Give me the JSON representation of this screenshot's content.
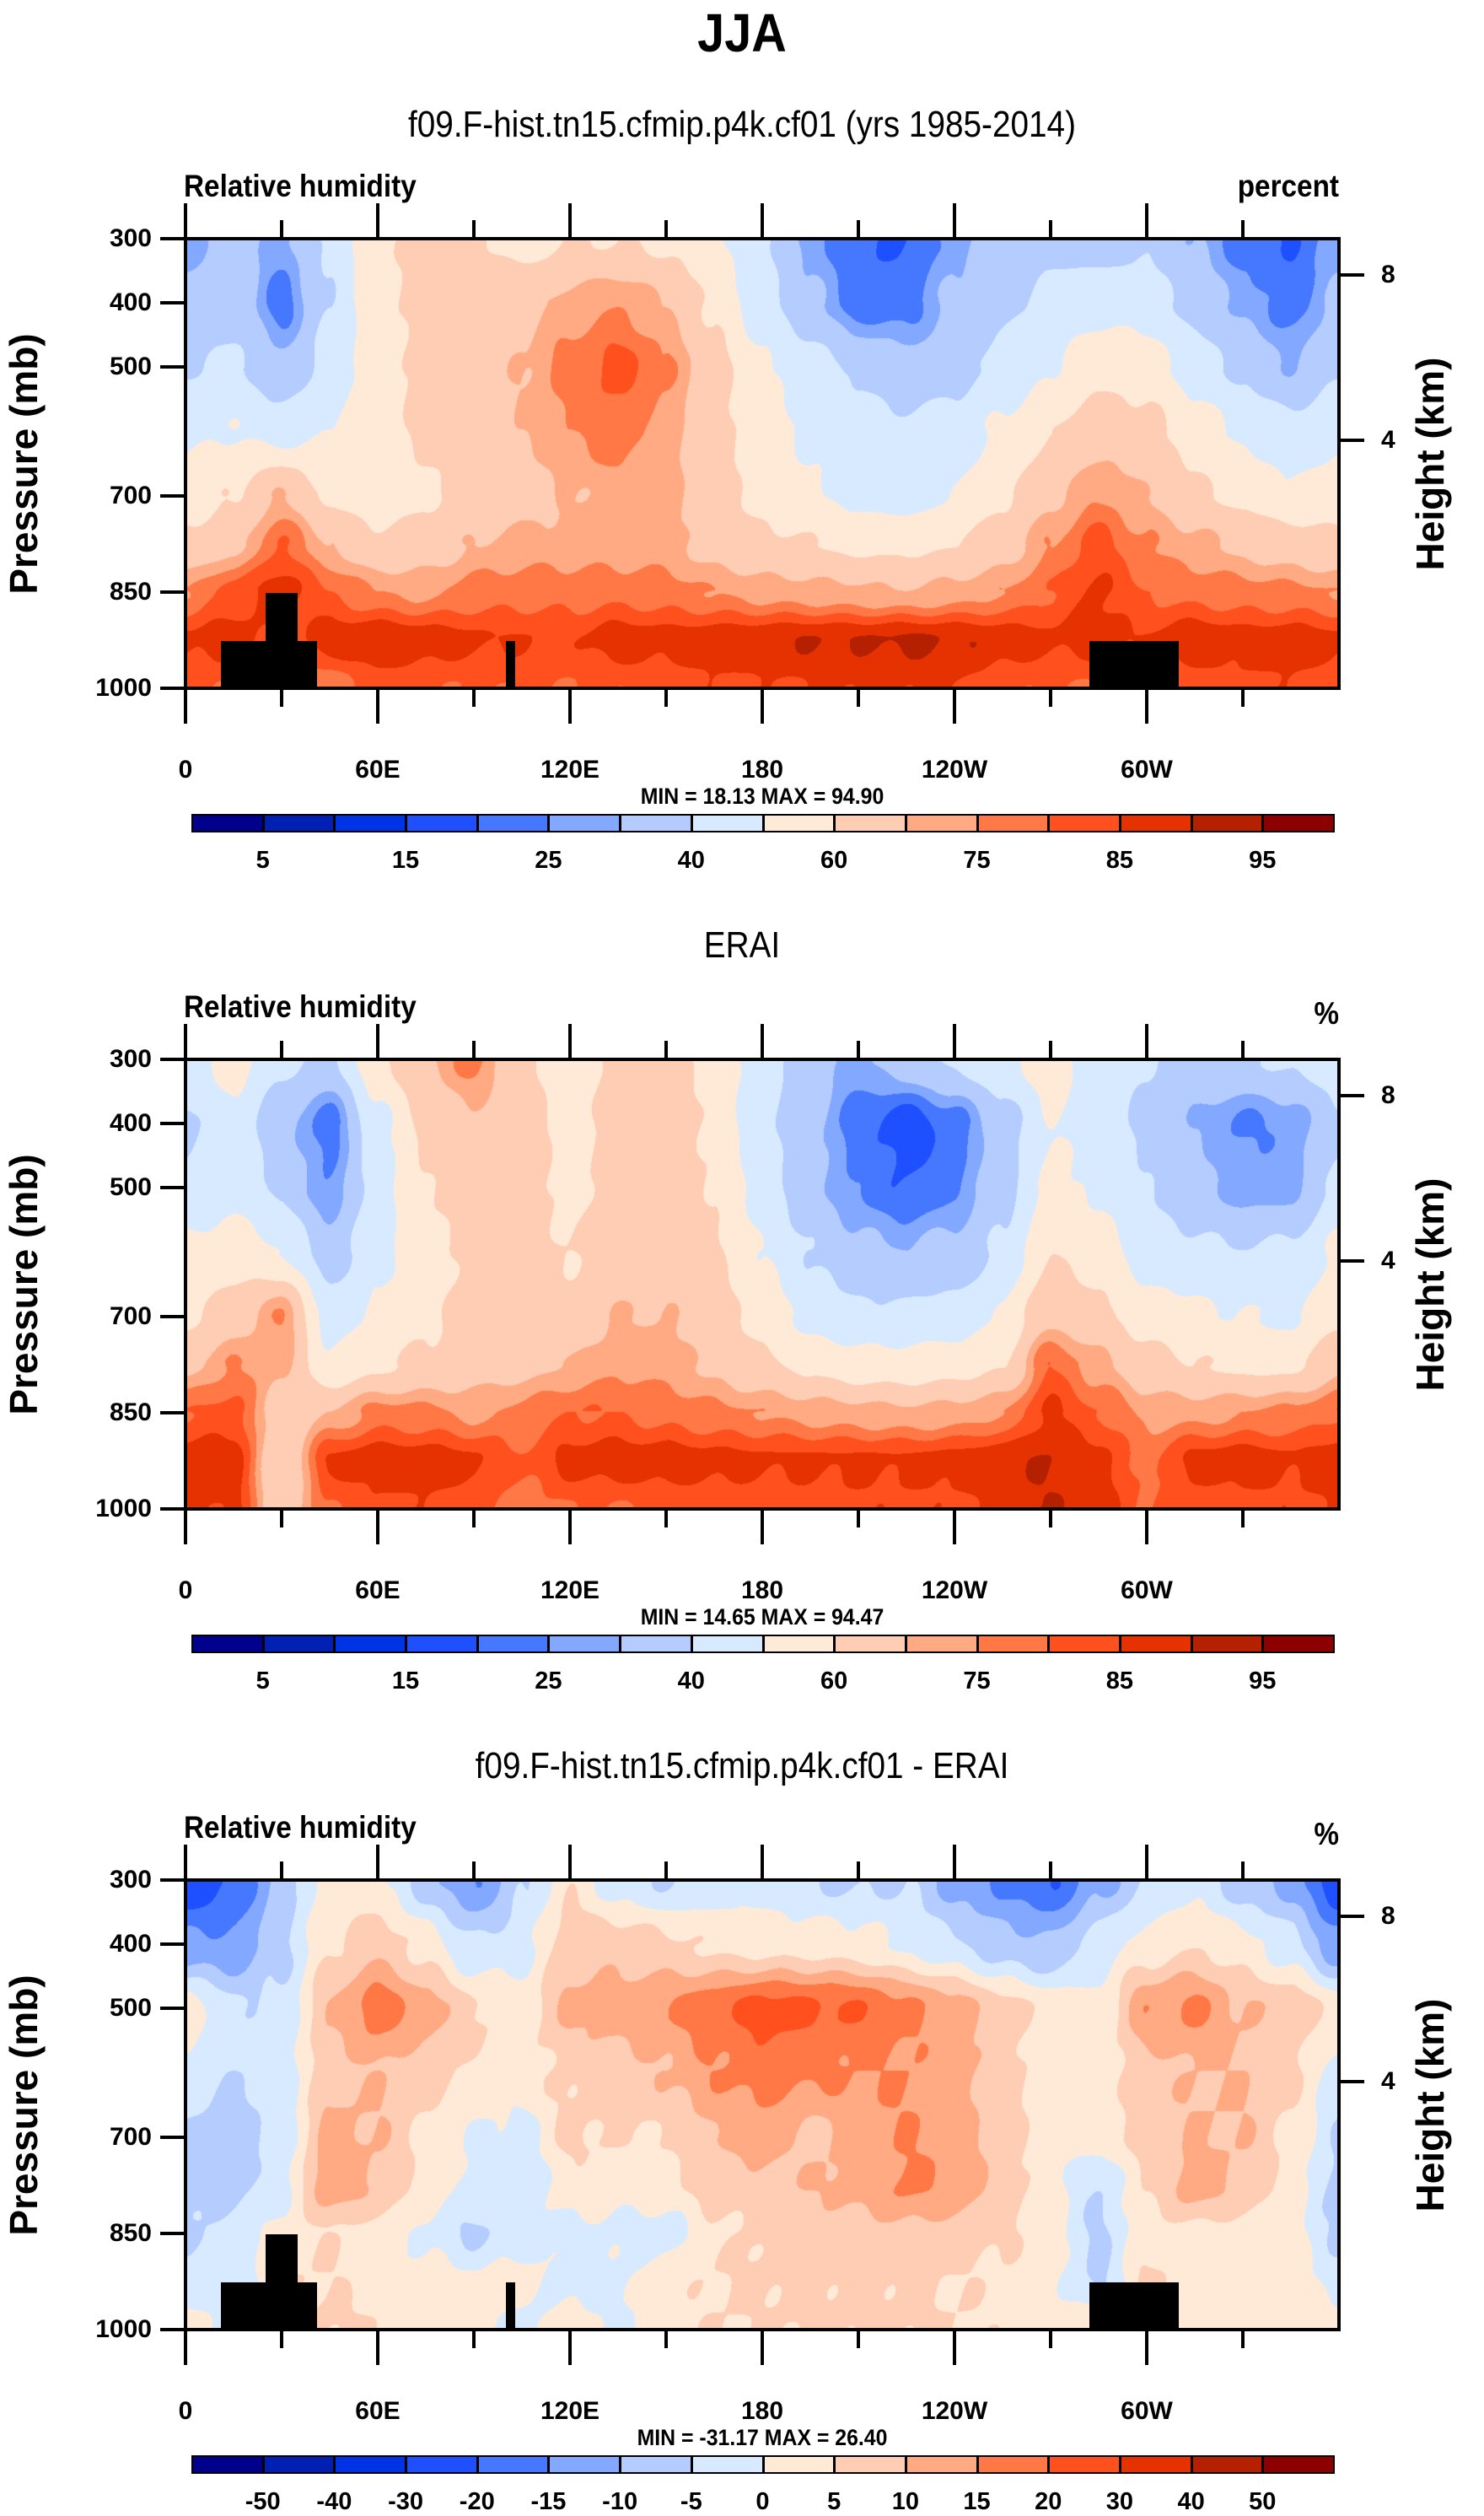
{
  "main_title": "JJA",
  "chart_data": [
    {
      "type": "heatmap",
      "subtype": "filled-contour",
      "title": "f09.F-hist.tn15.cfmip.p4k.cf01 (yrs 1985-2014)",
      "left_string": "Relative humidity",
      "right_string": "percent",
      "xlabel": "",
      "ylabel": "Pressure (mb)",
      "ylabel_right": "Height (km)",
      "x_ticks": [
        "0",
        "60E",
        "120E",
        "180",
        "120W",
        "60W"
      ],
      "x_tick_values": [
        0,
        60,
        120,
        180,
        240,
        300
      ],
      "x_range": [
        0,
        360
      ],
      "y_ticks": [
        "300",
        "400",
        "500",
        "700",
        "850",
        "1000"
      ],
      "y_tick_values": [
        300,
        400,
        500,
        700,
        850,
        1000
      ],
      "y_range": [
        300,
        1000
      ],
      "right_ticks": [
        "8",
        "4"
      ],
      "right_tick_pressures": [
        356,
        614
      ],
      "min_max_text": "MIN = 18.13  MAX = 94.90",
      "colorbar_levels": [
        5,
        10,
        15,
        20,
        25,
        30,
        40,
        50,
        60,
        70,
        75,
        80,
        85,
        90,
        95
      ],
      "colorbar_labels": [
        "5",
        "15",
        "25",
        "40",
        "60",
        "75",
        "85",
        "95"
      ],
      "colorbar_label_every": 2,
      "grid_lon": [
        0,
        15,
        30,
        45,
        60,
        75,
        90,
        105,
        120,
        135,
        150,
        165,
        180,
        195,
        210,
        225,
        240,
        255,
        270,
        285,
        300,
        315,
        330,
        345,
        360
      ],
      "grid_p": [
        300,
        400,
        500,
        600,
        700,
        775,
        850,
        925,
        1000
      ],
      "values": [
        [
          27,
          35,
          28,
          42,
          58,
          62,
          62,
          56,
          60,
          60,
          58,
          52,
          42,
          27,
          20,
          20,
          27,
          35,
          38,
          35,
          38,
          30,
          22,
          20,
          27
        ],
        [
          32,
          37,
          22,
          40,
          58,
          63,
          65,
          68,
          72,
          75,
          70,
          58,
          44,
          32,
          22,
          22,
          32,
          38,
          42,
          47,
          45,
          36,
          28,
          22,
          32
        ],
        [
          40,
          42,
          32,
          44,
          56,
          62,
          65,
          70,
          78,
          82,
          76,
          63,
          52,
          45,
          38,
          33,
          36,
          42,
          50,
          57,
          56,
          46,
          38,
          30,
          40
        ],
        [
          48,
          50,
          47,
          50,
          56,
          62,
          65,
          70,
          75,
          78,
          73,
          63,
          56,
          48,
          45,
          42,
          45,
          52,
          60,
          66,
          63,
          55,
          48,
          44,
          48
        ],
        [
          54,
          60,
          70,
          58,
          55,
          58,
          62,
          66,
          70,
          73,
          72,
          63,
          57,
          52,
          47,
          46,
          50,
          58,
          68,
          75,
          70,
          62,
          58,
          52,
          54
        ],
        [
          62,
          68,
          80,
          70,
          62,
          65,
          70,
          72,
          72,
          72,
          72,
          66,
          62,
          60,
          58,
          58,
          60,
          65,
          75,
          82,
          75,
          72,
          68,
          65,
          62
        ],
        [
          75,
          82,
          88,
          80,
          75,
          74,
          77,
          78,
          78,
          78,
          77,
          75,
          73,
          72,
          71,
          70,
          72,
          75,
          80,
          86,
          80,
          78,
          77,
          76,
          75
        ],
        [
          86,
          88,
          82,
          88,
          90,
          88,
          86,
          85,
          84,
          88,
          87,
          88,
          89,
          90,
          90,
          91,
          90,
          88,
          86,
          87,
          85,
          89,
          87,
          88,
          86
        ],
        [
          82,
          80,
          78,
          76,
          82,
          81,
          80,
          81,
          80,
          81,
          82,
          84,
          84,
          85,
          86,
          86,
          85,
          82,
          80,
          80,
          82,
          82,
          84,
          84,
          82
        ]
      ],
      "topography_masks": [
        {
          "lon": [
            11,
            41
          ],
          "top_p": 926
        },
        {
          "lon": [
            25,
            35
          ],
          "top_p": 852
        },
        {
          "lon": [
            100,
            103
          ],
          "top_p": 926
        },
        {
          "lon": [
            282,
            310
          ],
          "top_p": 926
        }
      ]
    },
    {
      "type": "heatmap",
      "subtype": "filled-contour",
      "title": "ERAI",
      "left_string": "Relative humidity",
      "right_string": "%",
      "xlabel": "",
      "ylabel": "Pressure (mb)",
      "ylabel_right": "Height (km)",
      "x_ticks": [
        "0",
        "60E",
        "120E",
        "180",
        "120W",
        "60W"
      ],
      "x_tick_values": [
        0,
        60,
        120,
        180,
        240,
        300
      ],
      "x_range": [
        0,
        360
      ],
      "y_ticks": [
        "300",
        "400",
        "500",
        "700",
        "850",
        "1000"
      ],
      "y_tick_values": [
        300,
        400,
        500,
        700,
        850,
        1000
      ],
      "y_range": [
        300,
        1000
      ],
      "right_ticks": [
        "8",
        "4"
      ],
      "right_tick_pressures": [
        356,
        614
      ],
      "min_max_text": "MIN = 14.65  MAX = 94.47",
      "colorbar_levels": [
        5,
        10,
        15,
        20,
        25,
        30,
        40,
        50,
        60,
        70,
        75,
        80,
        85,
        90,
        95
      ],
      "colorbar_labels": [
        "5",
        "15",
        "25",
        "40",
        "60",
        "75",
        "85",
        "95"
      ],
      "colorbar_label_every": 2,
      "grid_lon": [
        0,
        15,
        30,
        45,
        60,
        75,
        90,
        105,
        120,
        135,
        150,
        165,
        180,
        195,
        210,
        225,
        240,
        255,
        270,
        285,
        300,
        315,
        330,
        345,
        360
      ],
      "grid_p": [
        300,
        400,
        500,
        600,
        700,
        775,
        850,
        925,
        1000
      ],
      "values": [
        [
          45,
          55,
          42,
          38,
          58,
          70,
          77,
          62,
          55,
          63,
          65,
          55,
          45,
          35,
          28,
          35,
          42,
          48,
          55,
          45,
          40,
          35,
          38,
          42,
          45
        ],
        [
          38,
          47,
          32,
          22,
          47,
          62,
          68,
          66,
          55,
          64,
          67,
          58,
          42,
          32,
          22,
          17,
          22,
          35,
          50,
          46,
          38,
          30,
          24,
          26,
          38
        ],
        [
          42,
          47,
          38,
          25,
          45,
          60,
          64,
          64,
          58,
          64,
          66,
          60,
          45,
          33,
          24,
          20,
          24,
          36,
          52,
          48,
          40,
          33,
          27,
          28,
          42
        ],
        [
          52,
          55,
          50,
          35,
          47,
          58,
          62,
          63,
          60,
          64,
          66,
          61,
          50,
          40,
          32,
          30,
          33,
          42,
          60,
          55,
          45,
          42,
          40,
          42,
          52
        ],
        [
          58,
          65,
          75,
          46,
          52,
          58,
          62,
          62,
          62,
          70,
          70,
          64,
          56,
          46,
          42,
          42,
          44,
          52,
          68,
          63,
          55,
          52,
          50,
          48,
          58
        ],
        [
          68,
          75,
          72,
          52,
          58,
          62,
          66,
          68,
          70,
          74,
          73,
          68,
          62,
          58,
          54,
          54,
          56,
          60,
          80,
          72,
          64,
          60,
          58,
          58,
          68
        ],
        [
          80,
          82,
          65,
          70,
          77,
          76,
          74,
          76,
          80,
          80,
          78,
          76,
          75,
          73,
          72,
          71,
          72,
          75,
          86,
          80,
          74,
          73,
          75,
          76,
          80
        ],
        [
          88,
          88,
          60,
          86,
          88,
          88,
          86,
          80,
          87,
          88,
          88,
          87,
          86,
          86,
          86,
          86,
          87,
          89,
          90,
          87,
          78,
          87,
          88,
          86,
          88
        ],
        [
          85,
          86,
          62,
          80,
          84,
          84,
          82,
          78,
          80,
          80,
          81,
          82,
          82,
          83,
          84,
          84,
          84,
          86,
          90,
          88,
          80,
          82,
          83,
          84,
          85
        ]
      ],
      "topography_masks": []
    },
    {
      "type": "heatmap",
      "subtype": "filled-contour",
      "title": "f09.F-hist.tn15.cfmip.p4k.cf01 - ERAI",
      "left_string": "Relative humidity",
      "right_string": "%",
      "xlabel": "",
      "ylabel": "Pressure (mb)",
      "ylabel_right": "Height (km)",
      "x_ticks": [
        "0",
        "60E",
        "120E",
        "180",
        "120W",
        "60W"
      ],
      "x_tick_values": [
        0,
        60,
        120,
        180,
        240,
        300
      ],
      "x_range": [
        0,
        360
      ],
      "y_ticks": [
        "300",
        "400",
        "500",
        "700",
        "850",
        "1000"
      ],
      "y_tick_values": [
        300,
        400,
        500,
        700,
        850,
        1000
      ],
      "y_range": [
        300,
        1000
      ],
      "right_ticks": [
        "8",
        "4"
      ],
      "right_tick_pressures": [
        356,
        614
      ],
      "min_max_text": "MIN = -31.17  MAX = 26.40",
      "colorbar_levels": [
        -50,
        -40,
        -30,
        -20,
        -15,
        -10,
        -5,
        0,
        5,
        10,
        15,
        20,
        30,
        40,
        50
      ],
      "colorbar_labels": [
        "-50",
        "-40",
        "-30",
        "-20",
        "-15",
        "-10",
        "-5",
        "0",
        "5",
        "10",
        "15",
        "20",
        "30",
        "40",
        "50"
      ],
      "colorbar_label_every": 1,
      "grid_lon": [
        0,
        15,
        30,
        45,
        60,
        75,
        90,
        105,
        120,
        135,
        150,
        165,
        180,
        195,
        210,
        225,
        240,
        255,
        270,
        285,
        300,
        315,
        330,
        345,
        360
      ],
      "grid_p": [
        300,
        400,
        500,
        600,
        700,
        775,
        850,
        925,
        1000
      ],
      "values": [
        [
          -25,
          -20,
          -8,
          3,
          1,
          -8,
          -15,
          -6,
          4,
          -3,
          -5,
          -3,
          -2,
          -5,
          -6,
          -5,
          -12,
          -16,
          -20,
          -12,
          -5,
          -2,
          -8,
          -12,
          -25
        ],
        [
          -14,
          -14,
          -6,
          4,
          8,
          3,
          -5,
          -2,
          8,
          8,
          6,
          4,
          3,
          3,
          2,
          -1,
          -4,
          -8,
          -10,
          -2,
          2,
          5,
          2,
          -3,
          -14
        ],
        [
          3,
          -4,
          -4,
          10,
          18,
          12,
          6,
          3,
          11,
          12,
          15,
          18,
          22,
          21,
          20,
          16,
          12,
          7,
          3,
          1,
          14,
          16,
          10,
          8,
          3
        ],
        [
          -2,
          -5,
          -3,
          8,
          10,
          7,
          4,
          3,
          6,
          8,
          10,
          15,
          17,
          16,
          15,
          15,
          12,
          7,
          3,
          2,
          8,
          10,
          10,
          6,
          -2
        ],
        [
          -5,
          -8,
          -3,
          12,
          10,
          4,
          0,
          -2,
          6,
          5,
          5,
          10,
          13,
          8,
          13,
          15,
          13,
          7,
          2,
          2,
          7,
          10,
          10,
          4,
          -5
        ],
        [
          -7,
          -6,
          -2,
          14,
          10,
          3,
          -2,
          -4,
          3,
          2,
          4,
          7,
          8,
          10,
          12,
          16,
          14,
          8,
          2,
          -5,
          5,
          13,
          9,
          3,
          -7
        ],
        [
          -6,
          -3,
          2,
          5,
          3,
          -1,
          -6,
          -2,
          -1,
          -1,
          -3,
          4,
          6,
          7,
          8,
          9,
          8,
          6,
          2,
          -6,
          3,
          4,
          3,
          2,
          -6
        ],
        [
          -2,
          -4,
          5,
          5,
          3,
          2,
          1,
          2,
          -2,
          -1,
          3,
          5,
          6,
          6,
          6,
          6,
          5,
          4,
          1,
          -6,
          6,
          3,
          2,
          2,
          -2
        ],
        [
          2,
          0,
          4,
          6,
          5,
          3,
          2,
          -2,
          2,
          -1,
          3,
          5,
          5,
          6,
          6,
          6,
          5,
          4,
          3,
          5,
          5,
          4,
          3,
          3,
          2
        ]
      ],
      "topography_masks": [
        {
          "lon": [
            11,
            41
          ],
          "top_p": 926
        },
        {
          "lon": [
            25,
            35
          ],
          "top_p": 852
        },
        {
          "lon": [
            100,
            103
          ],
          "top_p": 926
        },
        {
          "lon": [
            282,
            310
          ],
          "top_p": 926
        }
      ]
    }
  ],
  "colormap": [
    "#00008c",
    "#0020b4",
    "#0032e6",
    "#1e50ff",
    "#4678ff",
    "#82a8ff",
    "#b4ccff",
    "#d7eaff",
    "#ffead7",
    "#ffccb4",
    "#ffaa82",
    "#ff7846",
    "#ff501e",
    "#e63200",
    "#b42000",
    "#8c0000"
  ],
  "mask_color": "#000000"
}
